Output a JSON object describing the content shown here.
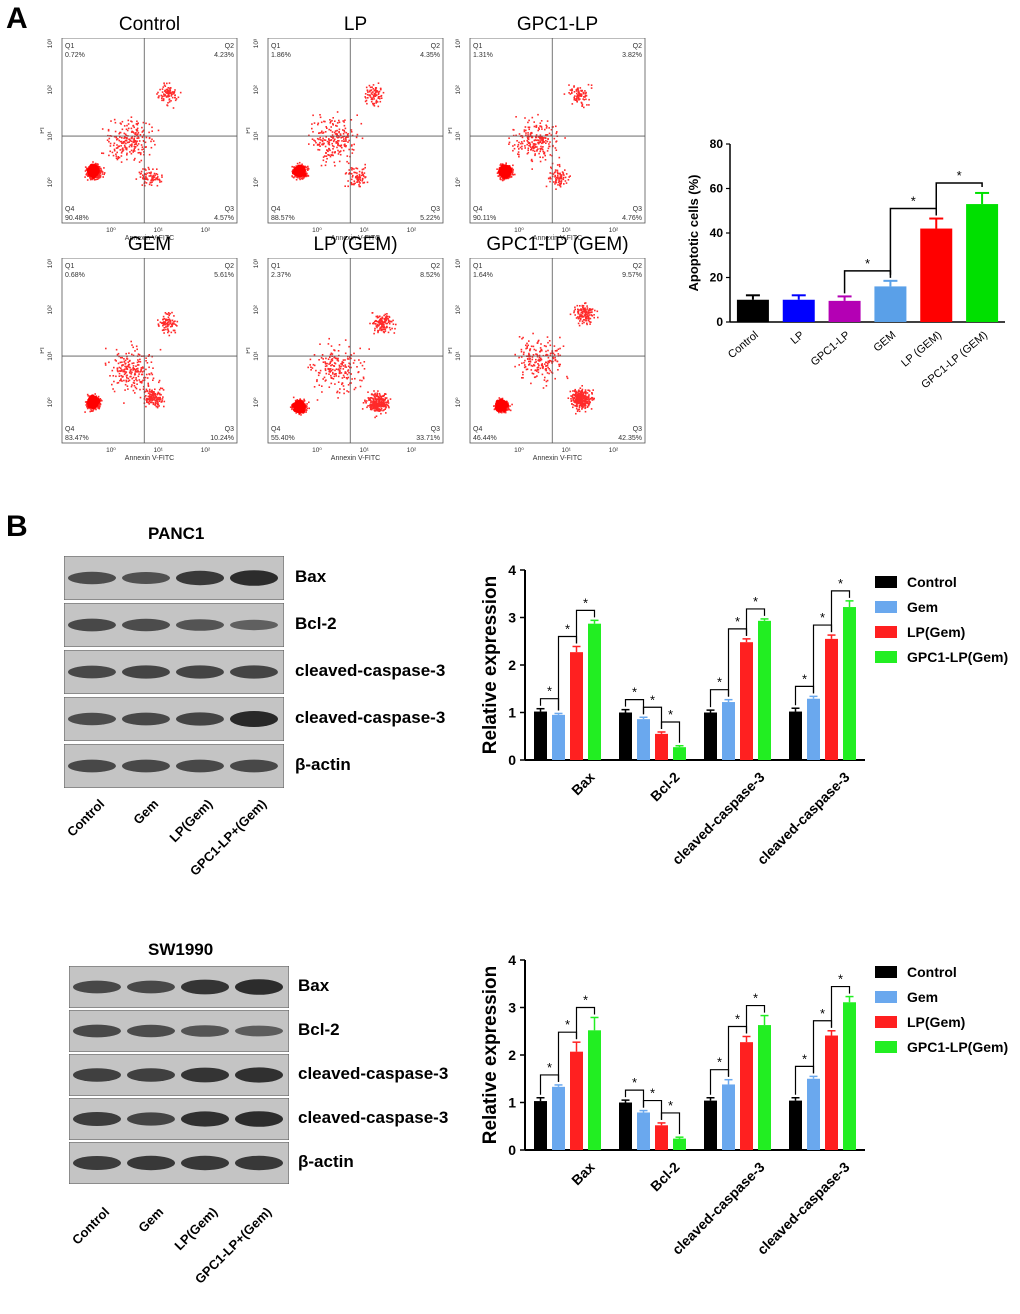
{
  "panel_a": {
    "label": "A",
    "flow_plots": [
      {
        "title": "Control",
        "q1": "0.72%",
        "q2": "4.23%",
        "q3": "4.57%",
        "q4": "90.48%",
        "ylabel": "PI"
      },
      {
        "title": "LP",
        "q1": "1.86%",
        "q2": "4.35%",
        "q3": "5.22%",
        "q4": "88.57%",
        "ylabel": "PI"
      },
      {
        "title": "GPC1-LP",
        "q1": "1.31%",
        "q2": "3.82%",
        "q3": "4.76%",
        "q4": "90.11%",
        "ylabel": "PI"
      },
      {
        "title": "GEM",
        "q1": "0.68%",
        "q2": "5.61%",
        "q3": "10.24%",
        "q4": "83.47%",
        "ylabel": "PI"
      },
      {
        "title": "LP (GEM)",
        "q1": "2.37%",
        "q2": "8.52%",
        "q3": "33.71%",
        "q4": "55.40%",
        "ylabel": "PI"
      },
      {
        "title": "GPC1-LP (GEM)",
        "q1": "1.64%",
        "q2": "9.57%",
        "q3": "42.35%",
        "q4": "46.44%",
        "ylabel": "PI"
      }
    ],
    "quadrant_names": [
      "Q1",
      "Q2",
      "Q3",
      "Q4"
    ],
    "x_axis_label": "Annexin V-FITC",
    "x_ticks": [
      "10⁰",
      "10¹",
      "10²",
      "10³"
    ],
    "y_ticks": [
      "10⁰",
      "10¹",
      "10²",
      "10³"
    ]
  },
  "chart_data": [
    {
      "id": "apoptosis",
      "type": "bar",
      "title": "",
      "xlabel": "",
      "ylabel": "Apoptotic cells (%)",
      "ylim": [
        0,
        80
      ],
      "yticks": [
        0,
        20,
        40,
        60,
        80
      ],
      "categories": [
        "Control",
        "LP",
        "GPC1-LP",
        "GEM",
        "LP (GEM)",
        "GPC1-LP (GEM)"
      ],
      "values": [
        10,
        10,
        9.5,
        16,
        42,
        53
      ],
      "errors": [
        2,
        2,
        2,
        2.5,
        4.5,
        5
      ],
      "colors": [
        "#000000",
        "#0000ff",
        "#b400b4",
        "#5aa0e8",
        "#ff0000",
        "#00e000"
      ],
      "significance": [
        {
          "from": 3,
          "to": 2,
          "label": "*"
        },
        {
          "from": 4,
          "to": 3,
          "label": "*"
        },
        {
          "from": 5,
          "to": 4,
          "label": "*"
        }
      ]
    },
    {
      "id": "panc1_expression",
      "type": "bar",
      "ylabel": "Relative expression",
      "ylim": [
        0,
        4
      ],
      "yticks": [
        0,
        1,
        2,
        3,
        4
      ],
      "categories": [
        "Bax",
        "Bcl-2",
        "cleaved-caspase-3",
        "cleaved-caspase-3"
      ],
      "series": [
        {
          "name": "Control",
          "color": "#000000",
          "values": [
            1.02,
            1.0,
            1.0,
            1.02
          ],
          "errors": [
            0.06,
            0.06,
            0.05,
            0.07
          ]
        },
        {
          "name": "Gem",
          "color": "#6aa8ee",
          "values": [
            0.95,
            0.86,
            1.22,
            1.29
          ],
          "errors": [
            0.03,
            0.04,
            0.05,
            0.05
          ]
        },
        {
          "name": "LP(Gem)",
          "color": "#ff2020",
          "values": [
            2.27,
            0.55,
            2.48,
            2.55
          ],
          "errors": [
            0.12,
            0.04,
            0.07,
            0.08
          ]
        },
        {
          "name": "GPC1-LP(Gem)",
          "color": "#22ee22",
          "values": [
            2.87,
            0.27,
            2.93,
            3.22
          ],
          "errors": [
            0.07,
            0.03,
            0.04,
            0.13
          ]
        }
      ],
      "significance_label": "*",
      "legend_position": "top-right"
    },
    {
      "id": "sw1990_expression",
      "type": "bar",
      "ylabel": "Relative expression",
      "ylim": [
        0,
        4
      ],
      "yticks": [
        0,
        1,
        2,
        3,
        4
      ],
      "categories": [
        "Bax",
        "Bcl-2",
        "cleaved-caspase-3",
        "cleaved-caspase-3"
      ],
      "series": [
        {
          "name": "Control",
          "color": "#000000",
          "values": [
            1.03,
            1.0,
            1.04,
            1.04
          ],
          "errors": [
            0.07,
            0.05,
            0.06,
            0.06
          ]
        },
        {
          "name": "Gem",
          "color": "#6aa8ee",
          "values": [
            1.33,
            0.79,
            1.38,
            1.5
          ],
          "errors": [
            0.04,
            0.04,
            0.1,
            0.05
          ]
        },
        {
          "name": "LP(Gem)",
          "color": "#ff2020",
          "values": [
            2.07,
            0.52,
            2.27,
            2.41
          ],
          "errors": [
            0.2,
            0.05,
            0.12,
            0.1
          ]
        },
        {
          "name": "GPC1-LP(Gem)",
          "color": "#22ee22",
          "values": [
            2.52,
            0.24,
            2.63,
            3.11
          ],
          "errors": [
            0.27,
            0.03,
            0.2,
            0.12
          ]
        }
      ],
      "significance_label": "*",
      "legend_position": "top-right"
    }
  ],
  "panel_b": {
    "label": "B",
    "blots": [
      {
        "title": "PANC1",
        "bands": [
          "Bax",
          "Bcl-2",
          "cleaved-caspase-3",
          "cleaved-caspase-3",
          "β-actin"
        ],
        "lanes": [
          "Control",
          "Gem",
          "LP(Gem)",
          "GPC1-LP+(Gem)"
        ]
      },
      {
        "title": "SW1990",
        "bands": [
          "Bax",
          "Bcl-2",
          "cleaved-caspase-3",
          "cleaved-caspase-3",
          "β-actin"
        ],
        "lanes": [
          "Control",
          "Gem",
          "LP(Gem)",
          "GPC1-LP+(Gem)"
        ]
      }
    ]
  }
}
